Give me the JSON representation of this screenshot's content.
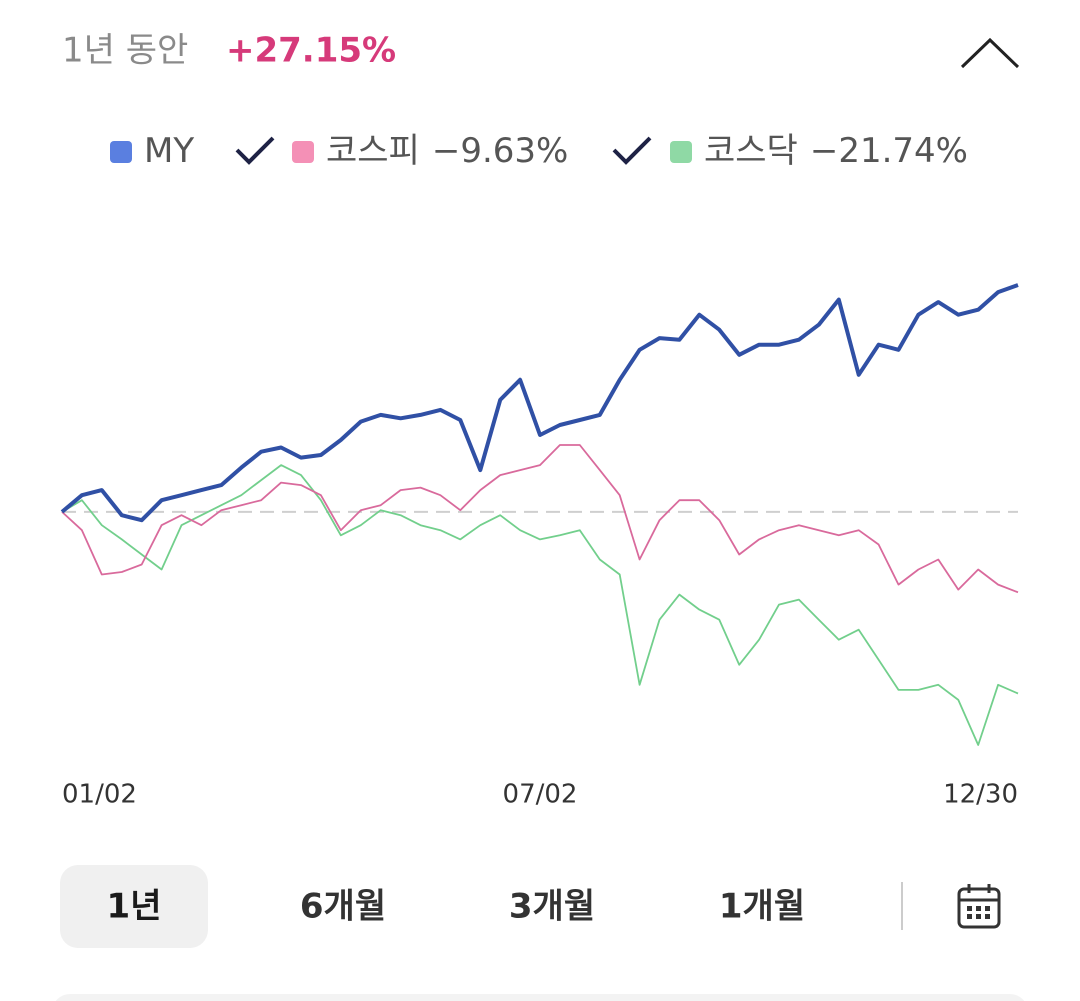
{
  "header": {
    "period": "1년 동안",
    "change": "+27.15%"
  },
  "chart_data": {
    "type": "line",
    "categories": [
      "01/02",
      null,
      null,
      null,
      null,
      null,
      null,
      null,
      null,
      null,
      null,
      null,
      null,
      null,
      null,
      null,
      null,
      null,
      null,
      null,
      null,
      null,
      null,
      null,
      "07/02",
      null,
      null,
      null,
      null,
      null,
      null,
      null,
      null,
      null,
      null,
      null,
      null,
      null,
      null,
      null,
      null,
      null,
      null,
      null,
      null,
      null,
      null,
      null,
      "12/30"
    ],
    "series": [
      {
        "name": "MY",
        "color": "#3050a5",
        "legend_color": "#5a7fe0",
        "values": [
          0,
          2.0,
          2.6,
          -0.4,
          -1.0,
          1.4,
          2.0,
          2.6,
          3.2,
          5.3,
          7.2,
          7.7,
          6.5,
          6.8,
          8.6,
          10.8,
          11.6,
          11.2,
          11.6,
          12.2,
          11.0,
          5.0,
          13.4,
          15.8,
          9.2,
          10.4,
          11.0,
          11.6,
          15.8,
          19.4,
          20.8,
          20.6,
          23.6,
          21.8,
          18.8,
          20.0,
          20.0,
          20.6,
          22.4,
          25.4,
          16.4,
          20.0,
          19.4,
          23.6,
          25.1,
          23.6,
          24.2,
          26.3,
          27.15
        ]
      },
      {
        "name": "코스피",
        "legend_value": "−9.63%",
        "color": "#d96a9c",
        "legend_color": "#f490b6",
        "values": [
          0,
          -2.2,
          -7.5,
          -7.2,
          -6.3,
          -1.6,
          -0.4,
          -1.6,
          0.2,
          0.8,
          1.4,
          3.5,
          3.2,
          2.0,
          -2.2,
          0.2,
          0.8,
          2.6,
          2.9,
          2.0,
          0.2,
          2.6,
          4.4,
          5.0,
          5.6,
          8.0,
          8.0,
          5.0,
          2.0,
          -5.7,
          -1.0,
          1.4,
          1.4,
          -1.0,
          -5.1,
          -3.3,
          -2.2,
          -1.6,
          -2.2,
          -2.8,
          -2.2,
          -3.9,
          -8.7,
          -6.9,
          -5.7,
          -9.3,
          -6.9,
          -8.7,
          -9.63
        ]
      },
      {
        "name": "코스닥",
        "legend_value": "−21.74%",
        "color": "#72cf8c",
        "legend_color": "#8fd9a5",
        "values": [
          0,
          1.4,
          -1.6,
          -3.3,
          -5.1,
          -6.9,
          -1.6,
          -0.4,
          0.8,
          2.0,
          3.8,
          5.6,
          4.4,
          1.4,
          -2.8,
          -1.6,
          0.2,
          -0.4,
          -1.6,
          -2.2,
          -3.3,
          -1.6,
          -0.4,
          -2.2,
          -3.3,
          -2.8,
          -2.2,
          -5.7,
          -7.5,
          -20.7,
          -12.9,
          -9.9,
          -11.7,
          -12.9,
          -18.3,
          -15.3,
          -11.1,
          -10.5,
          -12.9,
          -15.3,
          -14.1,
          -17.7,
          -21.3,
          -21.3,
          -20.7,
          -22.5,
          -27.9,
          -20.7,
          -21.74
        ]
      }
    ]
  },
  "periods": [
    "1년",
    "6개월",
    "3개월",
    "1개월"
  ]
}
